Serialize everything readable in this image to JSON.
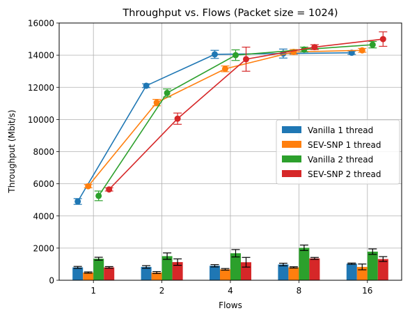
{
  "chart_data": {
    "type": "bar",
    "title": "Throughput vs. Flows (Packet size = 1024)",
    "xlabel": "Flows",
    "ylabel": "Throughput (Mbit/s)",
    "categories": [
      "1",
      "2",
      "4",
      "8",
      "16"
    ],
    "ylim": [
      0,
      16000
    ],
    "yticks": [
      "0",
      "2000",
      "4000",
      "6000",
      "8000",
      "10000",
      "12000",
      "14000",
      "16000"
    ],
    "grid": true,
    "legend_position": "right",
    "series": [
      {
        "name": "Vanilla 1 thread",
        "color": "#1f77b4",
        "bar_values": [
          800,
          830,
          900,
          980,
          1030
        ],
        "bar_errors": [
          60,
          80,
          70,
          80,
          40
        ],
        "line_values": [
          4900,
          12100,
          14050,
          14100,
          14150
        ],
        "line_errors": [
          180,
          120,
          250,
          280,
          100
        ]
      },
      {
        "name": "SEV-SNP 1 thread",
        "color": "#ff7f0e",
        "bar_values": [
          480,
          480,
          680,
          800,
          830
        ],
        "bar_errors": [
          40,
          60,
          50,
          40,
          180
        ],
        "line_values": [
          5850,
          11050,
          13150,
          14200,
          14300
        ],
        "line_errors": [
          100,
          200,
          180,
          150,
          120
        ]
      },
      {
        "name": "Vanilla 2 thread",
        "color": "#2ca02c",
        "bar_values": [
          1340,
          1500,
          1680,
          2020,
          1780
        ],
        "bar_errors": [
          90,
          200,
          230,
          170,
          170
        ],
        "line_values": [
          5250,
          11650,
          14000,
          14350,
          14650
        ],
        "line_errors": [
          300,
          250,
          330,
          150,
          200
        ]
      },
      {
        "name": "SEV-SNP 2 thread",
        "color": "#d62728",
        "bar_values": [
          800,
          1130,
          1120,
          1360,
          1320
        ],
        "bar_errors": [
          50,
          200,
          300,
          60,
          150
        ],
        "line_values": [
          5650,
          10050,
          13750,
          14500,
          15000
        ],
        "line_errors": [
          100,
          350,
          750,
          150,
          450
        ]
      }
    ]
  }
}
